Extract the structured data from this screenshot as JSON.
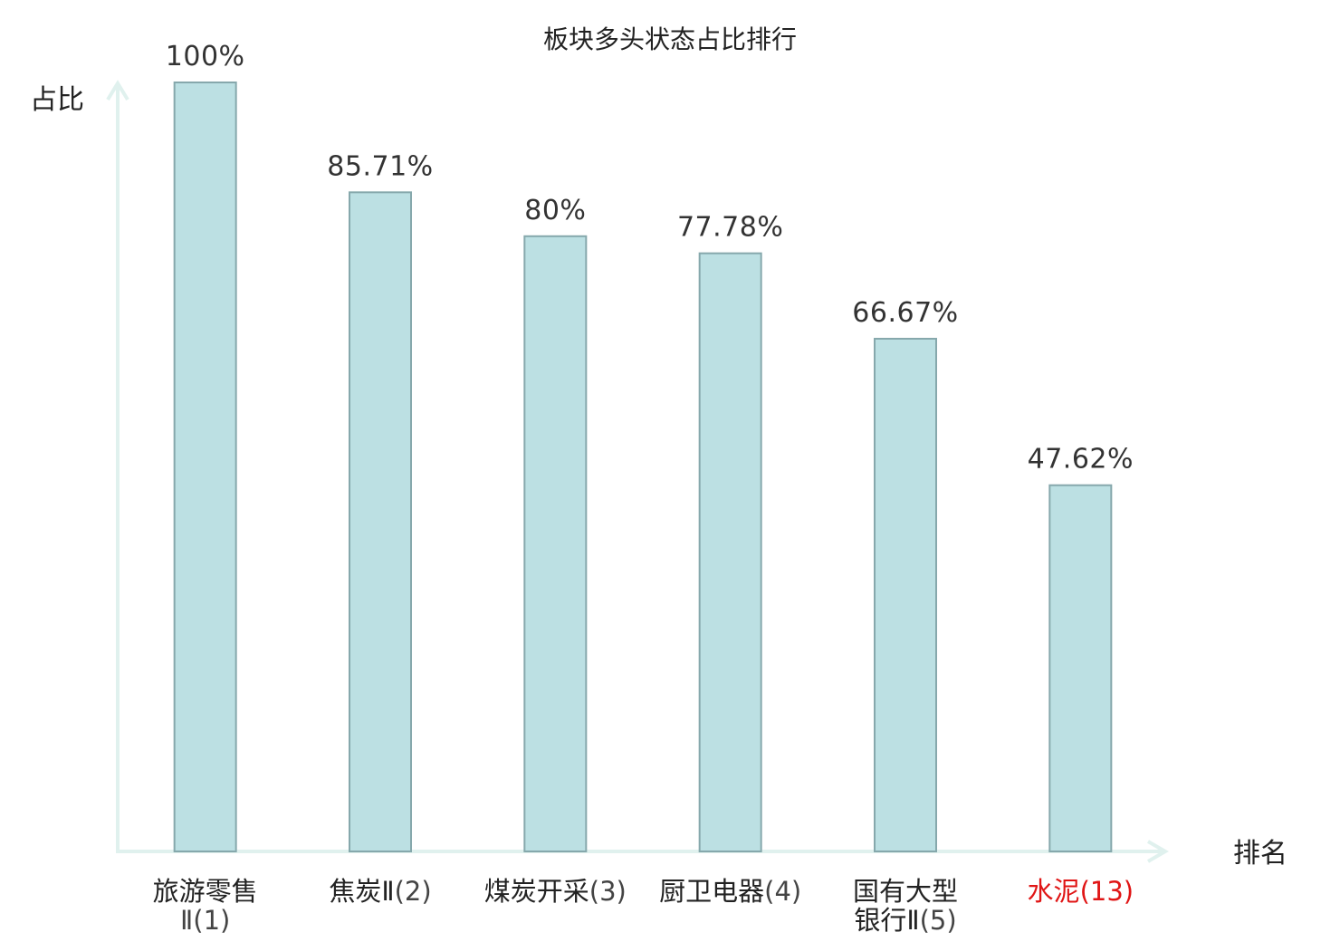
{
  "chart_data": {
    "type": "bar",
    "title": "板块多头状态占比排行",
    "ylabel": "占比",
    "xlabel": "排名",
    "ylim": [
      0,
      100
    ],
    "grid": false,
    "legend": "none",
    "categories": [
      {
        "name_lines": [
          "旅游零售"
        ],
        "suffix_line": "Ⅱ(1)",
        "highlight": false
      },
      {
        "name_lines": [
          "焦炭Ⅱ"
        ],
        "suffix_inline": "(2)",
        "highlight": false
      },
      {
        "name_lines": [
          "煤炭开采"
        ],
        "suffix_inline": "(3)",
        "highlight": false
      },
      {
        "name_lines": [
          "厨卫电器"
        ],
        "suffix_inline": "(4)",
        "highlight": false
      },
      {
        "name_lines": [
          "国有大型",
          "银行Ⅱ"
        ],
        "suffix_inline": "(5)",
        "highlight": false
      },
      {
        "name_lines": [
          "水泥"
        ],
        "suffix_inline": "(13)",
        "highlight": true
      }
    ],
    "values": [
      100,
      85.71,
      80,
      77.78,
      66.67,
      47.62
    ],
    "value_labels": [
      "100%",
      "85.71%",
      "80%",
      "77.78%",
      "66.67%",
      "47.62%"
    ],
    "colors": {
      "bar_fill": "#bce0e3",
      "bar_stroke": "#86a8ac",
      "axis": "#e0f1ee",
      "text": "#222222",
      "suffix_text": "#444444",
      "highlight_text": "#e01515"
    }
  }
}
